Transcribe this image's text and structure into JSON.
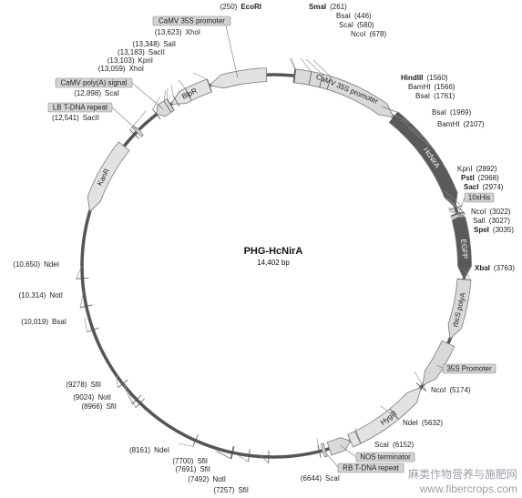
{
  "plasmid": {
    "name": "PHG-HcNirA",
    "size_label": "14,402 bp",
    "length": 14402
  },
  "features": [
    {
      "label": "CaMV 35S promoter",
      "start": 250,
      "end": 1560,
      "strand": 1,
      "color": "#d9d9d9",
      "label_mode": "arc"
    },
    {
      "label": "HcNirA",
      "start": 1560,
      "end": 2892,
      "strand": 1,
      "color": "#5a5a5a",
      "label_mode": "arc",
      "light_text": true
    },
    {
      "label": "EGFP",
      "start": 3035,
      "end": 3763,
      "strand": 1,
      "color": "#5a5a5a",
      "label_mode": "arc",
      "light_text": true
    },
    {
      "label": "rbcS polyA",
      "start": 3763,
      "end": 4500,
      "strand": 1,
      "color": "#d9d9d9",
      "label_mode": "arc"
    },
    {
      "label": "35S Promoter",
      "start": 4560,
      "end": 5150,
      "strand": 1,
      "color": "#d9d9d9",
      "label_mode": "box"
    },
    {
      "label": "HygR",
      "start": 5180,
      "end": 6250,
      "strand": -1,
      "color": "#e2e2e2",
      "label_mode": "arc"
    },
    {
      "label": "NOS terminator",
      "start": 6252,
      "end": 6520,
      "strand": -1,
      "color": "#d9d9d9",
      "label_mode": "box"
    },
    {
      "label": "RB T-DNA repeat",
      "start": 6570,
      "end": 6610,
      "strand": 1,
      "color": "#d9d9d9",
      "label_mode": "box"
    },
    {
      "label": "KanR",
      "start": 11460,
      "end": 12350,
      "strand": -1,
      "color": "#e2e2e2",
      "label_mode": "arc"
    },
    {
      "label": "LB T-DNA repeat",
      "start": 12580,
      "end": 12620,
      "strand": 1,
      "color": "#d9d9d9",
      "label_mode": "box"
    },
    {
      "label": "CaMV poly(A) signal",
      "start": 12900,
      "end": 13100,
      "strand": -1,
      "color": "#d9d9d9",
      "label_mode": "box"
    },
    {
      "label": "BlpR",
      "start": 13110,
      "end": 13620,
      "strand": -1,
      "color": "#e2e2e2",
      "label_mode": "arc"
    },
    {
      "label": "CaMV 35S promoter",
      "start": 13625,
      "end": 14320,
      "strand": -1,
      "color": "#e2e2e2",
      "label_mode": "box"
    },
    {
      "label": "10xHis",
      "start": 2975,
      "end": 3010,
      "strand": 1,
      "color": "#d9d9d9",
      "label_mode": "box"
    }
  ],
  "sites": [
    {
      "label": "EcoRI",
      "pos_label": "(250)",
      "bold": true
    },
    {
      "label": "SmaI",
      "pos_label": "(261)",
      "bold": true
    },
    {
      "label": "BsaI",
      "pos_label": "(446)",
      "bold": false
    },
    {
      "label": "ScaI",
      "pos_label": "(580)",
      "bold": false
    },
    {
      "label": "NcoI",
      "pos_label": "(678)",
      "bold": false
    },
    {
      "label": "HindIII",
      "pos_label": "(1560)",
      "bold": true
    },
    {
      "label": "BamHI",
      "pos_label": "(1566)",
      "bold": false
    },
    {
      "label": "BsaI",
      "pos_label": "(1761)",
      "bold": false
    },
    {
      "label": "BsaI",
      "pos_label": "(1969)",
      "bold": false
    },
    {
      "label": "BamHI",
      "pos_label": "(2107)",
      "bold": false
    },
    {
      "label": "KpnI",
      "pos_label": "(2892)",
      "bold": false
    },
    {
      "label": "PstI",
      "pos_label": "(2968)",
      "bold": true
    },
    {
      "label": "SacI",
      "pos_label": "(2974)",
      "bold": true
    },
    {
      "label": "NcoI",
      "pos_label": "(3022)",
      "bold": false
    },
    {
      "label": "SalI",
      "pos_label": "(3027)",
      "bold": false
    },
    {
      "label": "SpeI",
      "pos_label": "(3035)",
      "bold": true
    },
    {
      "label": "XbaI",
      "pos_label": "(3763)",
      "bold": true
    },
    {
      "label": "NcoI",
      "pos_label": "(5174)",
      "bold": false
    },
    {
      "label": "NdeI",
      "pos_label": "(5632)",
      "bold": false
    },
    {
      "label": "ScaI",
      "pos_label": "(6152)",
      "bold": false
    },
    {
      "label": "ScaI",
      "pos_label": "(6644)",
      "bold": false
    },
    {
      "label": "SfiI",
      "pos_label": "(7257)",
      "bold": false
    },
    {
      "label": "NotI",
      "pos_label": "(7492)",
      "bold": false
    },
    {
      "label": "SfiI",
      "pos_label": "(7691)",
      "bold": false
    },
    {
      "label": "SfiI",
      "pos_label": "(7700)",
      "bold": false
    },
    {
      "label": "NdeI",
      "pos_label": "(8161)",
      "bold": false
    },
    {
      "label": "SfiI",
      "pos_label": "(8966)",
      "bold": false
    },
    {
      "label": "NotI",
      "pos_label": "(9024)",
      "bold": false
    },
    {
      "label": "SfiI",
      "pos_label": "(9278)",
      "bold": false
    },
    {
      "label": "BsaI",
      "pos_label": "(10,019)",
      "bold": false
    },
    {
      "label": "NotI",
      "pos_label": "(10,314)",
      "bold": false
    },
    {
      "label": "NdeI",
      "pos_label": "(10,650)",
      "bold": false
    },
    {
      "label": "SacII",
      "pos_label": "(12,541)",
      "bold": false
    },
    {
      "label": "ScaI",
      "pos_label": "(12,898)",
      "bold": false
    },
    {
      "label": "XhoI",
      "pos_label": "(13,059)",
      "bold": false
    },
    {
      "label": "KpnI",
      "pos_label": "(13,103)",
      "bold": false
    },
    {
      "label": "SacII",
      "pos_label": "(13,183)",
      "bold": false
    },
    {
      "label": "SalI",
      "pos_label": "(13,348)",
      "bold": false
    },
    {
      "label": "XhoI",
      "pos_label": "(13,623)",
      "bold": false
    }
  ],
  "watermark": {
    "line1": "麻类作物营养与施肥网",
    "line2": "www.fibercrops.com"
  },
  "colors": {
    "backbone": "#555555",
    "feature_stroke": "#7a7a7a",
    "dark_feature": "#5a5a5a"
  }
}
